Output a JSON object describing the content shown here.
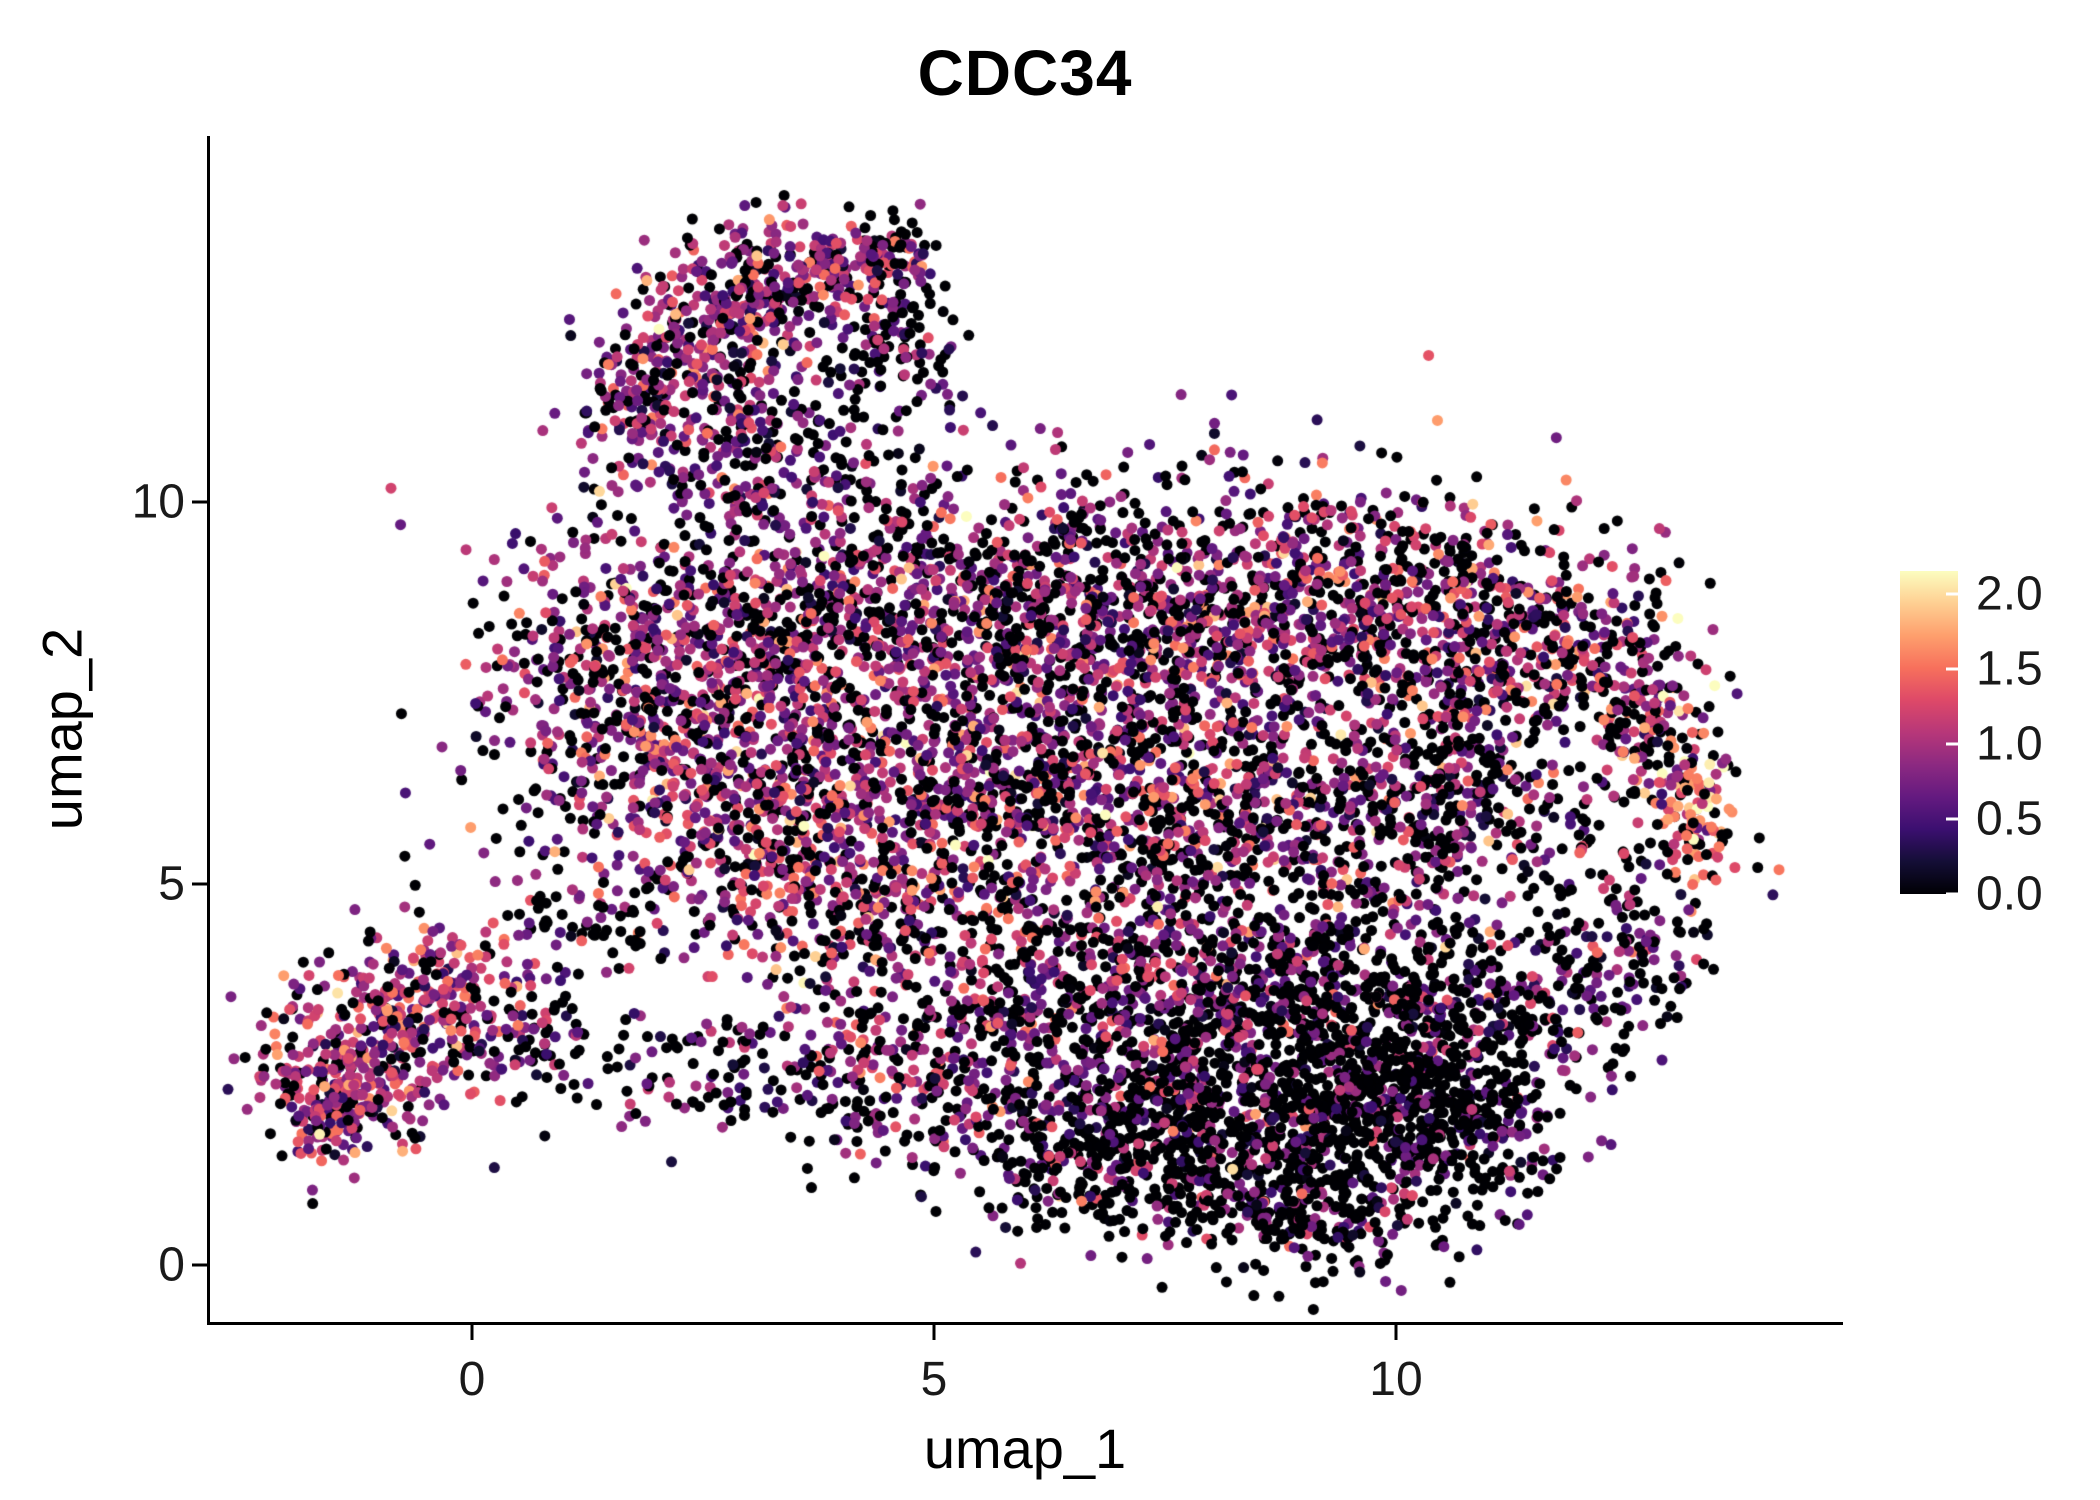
{
  "title": "CDC34",
  "chart_data": {
    "type": "scatter",
    "title": "CDC34",
    "subtitle": "",
    "xlabel": "umap_1",
    "ylabel": "umap_2",
    "xlim": [
      -2.84,
      14.8
    ],
    "ylim": [
      -0.75,
      14.8
    ],
    "xticks": [
      0,
      5,
      10
    ],
    "xtick_labels": [
      "0",
      "5",
      "10"
    ],
    "yticks": [
      0,
      5,
      10
    ],
    "ytick_labels": [
      "0",
      "5",
      "10"
    ],
    "grid": false,
    "legend_position": "right",
    "background": "#ffffff",
    "point_radius": 5.5,
    "seed": 7,
    "color_scale": {
      "name": "magma",
      "variable": "expression",
      "domain": [
        0,
        2.15
      ],
      "legend_ticks": [
        2.0,
        1.5,
        1.0,
        0.5,
        0.0
      ],
      "legend_tick_labels": [
        "2.0",
        "1.5",
        "1.0",
        "0.5",
        "0.0"
      ],
      "palette": [
        "#000004",
        "#140e36",
        "#3b0f70",
        "#641a80",
        "#8c2981",
        "#b73779",
        "#de4968",
        "#f7705c",
        "#fe9f6d",
        "#fecf92",
        "#fcfdbf"
      ]
    },
    "clusters": [
      {
        "cx": -1.2,
        "cy": 2.6,
        "sx": 0.55,
        "sy": 0.5,
        "n": 280,
        "zero": 0.18,
        "mean": 1.0,
        "sd": 0.4
      },
      {
        "cx": -0.4,
        "cy": 3.6,
        "sx": 0.5,
        "sy": 0.45,
        "n": 220,
        "zero": 0.18,
        "mean": 1.0,
        "sd": 0.4
      },
      {
        "cx": -1.6,
        "cy": 2.0,
        "sx": 0.3,
        "sy": 0.3,
        "n": 80,
        "zero": 0.25,
        "mean": 0.9,
        "sd": 0.4
      },
      {
        "cx": 0.5,
        "cy": 2.9,
        "sx": 0.4,
        "sy": 0.3,
        "n": 60,
        "zero": 0.5,
        "mean": 0.7,
        "sd": 0.35
      },
      {
        "cx": 1.1,
        "cy": 4.4,
        "sx": 0.5,
        "sy": 0.4,
        "n": 70,
        "zero": 0.45,
        "mean": 0.9,
        "sd": 0.4
      },
      {
        "cx": 1.8,
        "cy": 11.2,
        "sx": 0.35,
        "sy": 0.45,
        "n": 150,
        "zero": 0.25,
        "mean": 0.9,
        "sd": 0.4
      },
      {
        "cx": 2.5,
        "cy": 12.1,
        "sx": 0.45,
        "sy": 0.5,
        "n": 200,
        "zero": 0.25,
        "mean": 0.9,
        "sd": 0.4
      },
      {
        "cx": 3.3,
        "cy": 12.9,
        "sx": 0.5,
        "sy": 0.4,
        "n": 220,
        "zero": 0.25,
        "mean": 0.9,
        "sd": 0.4
      },
      {
        "cx": 4.3,
        "cy": 13.2,
        "sx": 0.4,
        "sy": 0.3,
        "n": 120,
        "zero": 0.3,
        "mean": 0.9,
        "sd": 0.4
      },
      {
        "cx": 4.6,
        "cy": 12.2,
        "sx": 0.3,
        "sy": 0.45,
        "n": 80,
        "zero": 0.5,
        "mean": 0.7,
        "sd": 0.35
      },
      {
        "cx": 3.2,
        "cy": 10.6,
        "sx": 0.5,
        "sy": 0.5,
        "n": 160,
        "zero": 0.35,
        "mean": 0.8,
        "sd": 0.4
      },
      {
        "cx": 4.2,
        "cy": 11.3,
        "sx": 0.7,
        "sy": 0.6,
        "n": 90,
        "zero": 0.55,
        "mean": 0.6,
        "sd": 0.3
      },
      {
        "cx": 1.6,
        "cy": 7.6,
        "sx": 0.8,
        "sy": 1.0,
        "n": 420,
        "zero": 0.3,
        "mean": 0.95,
        "sd": 0.42
      },
      {
        "cx": 3.2,
        "cy": 8.3,
        "sx": 1.0,
        "sy": 0.9,
        "n": 500,
        "zero": 0.3,
        "mean": 0.95,
        "sd": 0.42
      },
      {
        "cx": 5.2,
        "cy": 8.6,
        "sx": 1.2,
        "sy": 0.9,
        "n": 550,
        "zero": 0.35,
        "mean": 0.9,
        "sd": 0.42
      },
      {
        "cx": 7.3,
        "cy": 8.6,
        "sx": 1.2,
        "sy": 0.9,
        "n": 550,
        "zero": 0.35,
        "mean": 0.9,
        "sd": 0.42
      },
      {
        "cx": 9.3,
        "cy": 8.7,
        "sx": 1.1,
        "sy": 0.8,
        "n": 500,
        "zero": 0.35,
        "mean": 0.95,
        "sd": 0.42
      },
      {
        "cx": 11.0,
        "cy": 8.3,
        "sx": 0.9,
        "sy": 0.8,
        "n": 380,
        "zero": 0.4,
        "mean": 0.9,
        "sd": 0.42
      },
      {
        "cx": 12.3,
        "cy": 7.8,
        "sx": 0.5,
        "sy": 0.6,
        "n": 150,
        "zero": 0.4,
        "mean": 1.0,
        "sd": 0.45
      },
      {
        "cx": 2.8,
        "cy": 6.0,
        "sx": 1.0,
        "sy": 0.8,
        "n": 420,
        "zero": 0.3,
        "mean": 1.0,
        "sd": 0.45
      },
      {
        "cx": 5.0,
        "cy": 6.2,
        "sx": 1.1,
        "sy": 0.9,
        "n": 500,
        "zero": 0.3,
        "mean": 1.0,
        "sd": 0.45
      },
      {
        "cx": 7.2,
        "cy": 6.0,
        "sx": 1.1,
        "sy": 0.9,
        "n": 500,
        "zero": 0.35,
        "mean": 0.95,
        "sd": 0.45
      },
      {
        "cx": 9.2,
        "cy": 5.8,
        "sx": 1.0,
        "sy": 0.9,
        "n": 420,
        "zero": 0.4,
        "mean": 0.9,
        "sd": 0.45
      },
      {
        "cx": 10.6,
        "cy": 6.3,
        "sx": 0.6,
        "sy": 0.7,
        "n": 200,
        "zero": 0.5,
        "mean": 0.8,
        "sd": 0.4
      },
      {
        "cx": 12.9,
        "cy": 6.7,
        "sx": 0.35,
        "sy": 0.5,
        "n": 110,
        "zero": 0.3,
        "mean": 1.2,
        "sd": 0.45
      },
      {
        "cx": 13.3,
        "cy": 5.8,
        "sx": 0.25,
        "sy": 0.5,
        "n": 80,
        "zero": 0.25,
        "mean": 1.5,
        "sd": 0.4
      },
      {
        "cx": 12.6,
        "cy": 4.2,
        "sx": 0.4,
        "sy": 0.5,
        "n": 90,
        "zero": 0.5,
        "mean": 0.8,
        "sd": 0.4
      },
      {
        "cx": 11.6,
        "cy": 3.2,
        "sx": 0.5,
        "sy": 0.5,
        "n": 130,
        "zero": 0.6,
        "mean": 0.7,
        "sd": 0.35
      },
      {
        "cx": 12.0,
        "cy": 5.3,
        "sx": 0.7,
        "sy": 0.8,
        "n": 60,
        "zero": 0.6,
        "mean": 0.7,
        "sd": 0.35
      },
      {
        "cx": 4.2,
        "cy": 4.6,
        "sx": 0.8,
        "sy": 0.6,
        "n": 250,
        "zero": 0.35,
        "mean": 0.95,
        "sd": 0.42
      },
      {
        "cx": 5.7,
        "cy": 3.2,
        "sx": 0.9,
        "sy": 0.7,
        "n": 280,
        "zero": 0.45,
        "mean": 0.85,
        "sd": 0.4
      },
      {
        "cx": 7.2,
        "cy": 3.6,
        "sx": 0.9,
        "sy": 0.8,
        "n": 350,
        "zero": 0.45,
        "mean": 0.85,
        "sd": 0.4
      },
      {
        "cx": 8.8,
        "cy": 3.4,
        "sx": 0.9,
        "sy": 0.8,
        "n": 380,
        "zero": 0.55,
        "mean": 0.8,
        "sd": 0.4
      },
      {
        "cx": 10.2,
        "cy": 3.6,
        "sx": 0.7,
        "sy": 0.7,
        "n": 250,
        "zero": 0.6,
        "mean": 0.75,
        "sd": 0.38
      },
      {
        "cx": 8.6,
        "cy": 1.6,
        "sx": 1.0,
        "sy": 0.7,
        "n": 520,
        "zero": 0.72,
        "mean": 0.7,
        "sd": 0.4
      },
      {
        "cx": 9.9,
        "cy": 2.2,
        "sx": 0.8,
        "sy": 0.7,
        "n": 380,
        "zero": 0.75,
        "mean": 0.65,
        "sd": 0.38
      },
      {
        "cx": 7.2,
        "cy": 1.9,
        "sx": 0.8,
        "sy": 0.6,
        "n": 300,
        "zero": 0.6,
        "mean": 0.8,
        "sd": 0.4
      },
      {
        "cx": 10.9,
        "cy": 1.9,
        "sx": 0.5,
        "sy": 0.5,
        "n": 140,
        "zero": 0.75,
        "mean": 0.6,
        "sd": 0.35
      },
      {
        "cx": 9.2,
        "cy": 0.6,
        "sx": 0.8,
        "sy": 0.35,
        "n": 170,
        "zero": 0.7,
        "mean": 0.7,
        "sd": 0.38
      },
      {
        "cx": 6.3,
        "cy": 1.1,
        "sx": 0.5,
        "sy": 0.4,
        "n": 80,
        "zero": 0.6,
        "mean": 0.7,
        "sd": 0.35
      },
      {
        "cx": 2.2,
        "cy": 2.6,
        "sx": 0.8,
        "sy": 0.45,
        "n": 90,
        "zero": 0.6,
        "mean": 0.7,
        "sd": 0.35
      },
      {
        "cx": 3.8,
        "cy": 2.6,
        "sx": 0.8,
        "sy": 0.5,
        "n": 110,
        "zero": 0.55,
        "mean": 0.8,
        "sd": 0.4
      },
      {
        "cx": 5.2,
        "cy": 1.9,
        "sx": 0.7,
        "sy": 0.4,
        "n": 100,
        "zero": 0.5,
        "mean": 0.8,
        "sd": 0.4
      },
      {
        "cx": 6.5,
        "cy": 6.8,
        "sx": 3.0,
        "sy": 2.0,
        "n": 320,
        "zero": 0.5,
        "mean": 0.8,
        "sd": 0.4
      }
    ]
  }
}
